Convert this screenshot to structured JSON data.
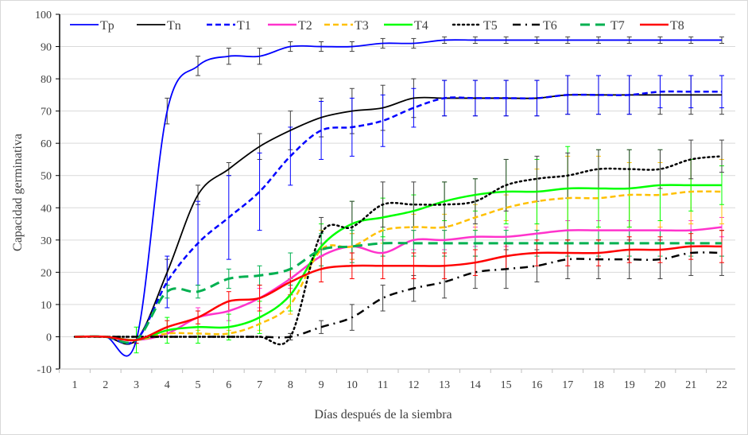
{
  "chart_data": {
    "type": "line",
    "title": "",
    "xlabel": "Días después de la siembra",
    "ylabel": "Capacidad germinativa",
    "x": [
      1,
      2,
      3,
      4,
      5,
      6,
      7,
      8,
      9,
      10,
      11,
      12,
      13,
      14,
      15,
      16,
      17,
      18,
      19,
      20,
      21,
      22
    ],
    "xlim": [
      1,
      22
    ],
    "ylim": [
      -10,
      100
    ],
    "yticks": [
      -10,
      0,
      10,
      20,
      30,
      40,
      50,
      60,
      70,
      80,
      90,
      100
    ],
    "grid": "horizontal",
    "legend": "top",
    "error_bars": true,
    "smoothed": true,
    "series": [
      {
        "name": "Tp",
        "color": "#0000ff",
        "style": "solid",
        "values": [
          0,
          0,
          -1,
          70,
          84,
          87,
          87,
          90,
          90,
          90,
          91,
          91,
          92,
          92,
          92,
          92,
          92,
          92,
          92,
          92,
          92,
          92
        ],
        "error": [
          0,
          0,
          1,
          4,
          3,
          2.5,
          2.5,
          1.5,
          1.5,
          1.5,
          1.5,
          1.5,
          1,
          1,
          1,
          1,
          1,
          1,
          1,
          1,
          1,
          1
        ]
      },
      {
        "name": "Tn",
        "color": "#000000",
        "style": "solid",
        "values": [
          0,
          0,
          -1,
          20,
          44,
          52,
          59,
          64,
          68,
          70,
          71,
          74,
          74,
          74,
          74,
          74,
          75,
          75,
          75,
          75,
          75,
          75
        ],
        "error": [
          0,
          0,
          1,
          4,
          3,
          2,
          4,
          6,
          6,
          7,
          7,
          6,
          5.5,
          5.5,
          5.5,
          5.5,
          6,
          6,
          6,
          6,
          6,
          6
        ]
      },
      {
        "name": "T1",
        "color": "#0000ff",
        "style": "dash",
        "values": [
          0,
          0,
          -1,
          17,
          29,
          37,
          45,
          56,
          64,
          65,
          67,
          71,
          74,
          74,
          74,
          74,
          75,
          75,
          75,
          76,
          76,
          76
        ],
        "error": [
          0,
          0,
          1,
          8,
          13,
          13,
          12,
          9,
          9,
          9,
          8,
          6,
          5.5,
          5.5,
          5.5,
          5.5,
          6,
          6,
          6,
          5,
          5,
          5
        ]
      },
      {
        "name": "T2",
        "color": "#ff33cc",
        "style": "solid",
        "values": [
          0,
          0,
          -1,
          1,
          6,
          8,
          12,
          18,
          25,
          28,
          26,
          30,
          30,
          31,
          31,
          32,
          33,
          33,
          33,
          33,
          33,
          34
        ],
        "error": [
          0,
          0,
          1,
          1,
          3,
          3,
          3,
          3,
          4,
          4,
          4,
          3,
          3,
          3,
          3,
          3,
          3,
          3,
          3,
          3,
          3,
          3
        ]
      },
      {
        "name": "T3",
        "color": "#ffc000",
        "style": "dash",
        "values": [
          0,
          0,
          -1,
          1,
          1,
          1,
          4,
          10,
          27,
          28,
          33,
          34,
          34,
          37,
          40,
          42,
          43,
          43,
          44,
          44,
          45,
          45
        ],
        "error": [
          0,
          0,
          1,
          1,
          1,
          1,
          2,
          3,
          6,
          4,
          4,
          4,
          4,
          4,
          4,
          10,
          13,
          13,
          10,
          10,
          10,
          10
        ]
      },
      {
        "name": "T4",
        "color": "#00ff00",
        "style": "solid",
        "values": [
          0,
          0,
          -1,
          2,
          3,
          3,
          6,
          13,
          28,
          35,
          37,
          39,
          42,
          44,
          45,
          45,
          46,
          46,
          46,
          47,
          47,
          47
        ],
        "error": [
          0,
          0,
          4,
          4,
          5,
          4,
          5,
          5,
          7,
          7,
          6,
          5,
          6,
          5,
          10,
          10,
          13,
          12,
          12,
          11,
          8,
          6
        ]
      },
      {
        "name": "T5",
        "color": "#000000",
        "style": "dot",
        "values": [
          0,
          0,
          0,
          0,
          0,
          0,
          0,
          0,
          32,
          34,
          41,
          41,
          41,
          42,
          47,
          49,
          50,
          52,
          52,
          52,
          55,
          56
        ],
        "error": [
          0,
          0,
          0,
          0,
          0,
          0,
          0,
          1,
          5,
          8,
          7,
          7,
          7,
          7,
          8,
          7,
          7,
          6,
          6,
          6,
          6,
          5
        ]
      },
      {
        "name": "T6",
        "color": "#000000",
        "style": "dashdot",
        "values": [
          0,
          0,
          0,
          0,
          0,
          0,
          0,
          0,
          3,
          6,
          12,
          15,
          17,
          20,
          21,
          22,
          24,
          24,
          24,
          24,
          26,
          26
        ],
        "error": [
          0,
          0,
          0,
          0,
          0,
          0,
          0,
          1,
          2,
          4,
          4,
          4,
          5,
          5,
          6,
          5,
          6,
          6,
          6,
          6,
          7,
          7
        ]
      },
      {
        "name": "T7",
        "color": "#00b050",
        "style": "longdash",
        "values": [
          0,
          0,
          -1,
          14,
          14,
          18,
          19,
          21,
          27,
          28,
          29,
          29,
          29,
          29,
          29,
          29,
          29,
          29,
          29,
          29,
          29,
          29
        ],
        "error": [
          0,
          0,
          1,
          2,
          2,
          3,
          3,
          5,
          5,
          5,
          4,
          4,
          4,
          4,
          4,
          4,
          4,
          4,
          4,
          4,
          4,
          4
        ]
      },
      {
        "name": "T8",
        "color": "#ff0000",
        "style": "solid",
        "values": [
          0,
          0,
          -1,
          3,
          6,
          11,
          12,
          17,
          21,
          22,
          22,
          22,
          22,
          23,
          25,
          26,
          26,
          26,
          27,
          27,
          28,
          28
        ],
        "error": [
          0,
          0,
          1,
          2,
          2,
          3,
          4,
          4,
          4,
          4,
          4,
          4,
          4,
          4,
          4,
          4,
          4,
          4,
          4,
          4,
          4,
          5
        ]
      }
    ]
  }
}
